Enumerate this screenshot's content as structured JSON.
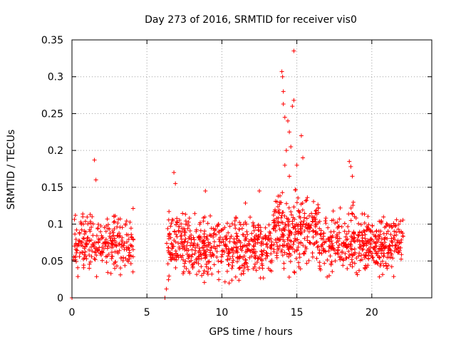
{
  "chart_data": {
    "type": "scatter",
    "title": "Day 273 of 2016, SRMTID for receiver vis0",
    "xlabel": "GPS time / hours",
    "ylabel": "SRMTID / TECUs",
    "xlim": [
      0,
      24
    ],
    "ylim": [
      0,
      0.35
    ],
    "xticks": [
      0,
      5,
      10,
      15,
      20
    ],
    "xtick_labels": [
      "0",
      "5",
      "10",
      "15",
      "20"
    ],
    "yticks": [
      0,
      0.05,
      0.1,
      0.15,
      0.2,
      0.25,
      0.3,
      0.35
    ],
    "ytick_labels": [
      "0",
      "0.05",
      "0.1",
      "0.15",
      "0.2",
      "0.25",
      "0.3",
      "0.35"
    ],
    "grid": true,
    "marker": "+",
    "color": "#ff0000",
    "series": [
      {
        "name": "SRMTID",
        "segments": [
          {
            "start": 0.1,
            "end": 4.1,
            "base": 0.075,
            "spread": 0.035,
            "count": 260
          },
          {
            "start": 6.3,
            "end": 13.4,
            "base": 0.07,
            "spread": 0.035,
            "count": 520
          },
          {
            "start": 13.4,
            "end": 16.5,
            "base": 0.09,
            "spread": 0.045,
            "count": 260
          },
          {
            "start": 16.5,
            "end": 22.1,
            "base": 0.075,
            "spread": 0.035,
            "count": 420
          }
        ],
        "highlights": [
          {
            "x": 1.5,
            "y": 0.187
          },
          {
            "x": 1.6,
            "y": 0.16
          },
          {
            "x": 6.8,
            "y": 0.17
          },
          {
            "x": 6.9,
            "y": 0.155
          },
          {
            "x": 8.9,
            "y": 0.145
          },
          {
            "x": 12.5,
            "y": 0.145
          },
          {
            "x": 14.0,
            "y": 0.307
          },
          {
            "x": 14.05,
            "y": 0.3
          },
          {
            "x": 14.1,
            "y": 0.28
          },
          {
            "x": 14.1,
            "y": 0.263
          },
          {
            "x": 14.2,
            "y": 0.245
          },
          {
            "x": 14.4,
            "y": 0.24
          },
          {
            "x": 14.5,
            "y": 0.225
          },
          {
            "x": 14.6,
            "y": 0.205
          },
          {
            "x": 14.7,
            "y": 0.26
          },
          {
            "x": 14.8,
            "y": 0.268
          },
          {
            "x": 14.8,
            "y": 0.335
          },
          {
            "x": 14.3,
            "y": 0.2
          },
          {
            "x": 14.2,
            "y": 0.18
          },
          {
            "x": 14.5,
            "y": 0.165
          },
          {
            "x": 15.3,
            "y": 0.22
          },
          {
            "x": 15.4,
            "y": 0.19
          },
          {
            "x": 15.0,
            "y": 0.18
          },
          {
            "x": 18.5,
            "y": 0.185
          },
          {
            "x": 18.6,
            "y": 0.178
          },
          {
            "x": 18.7,
            "y": 0.165
          },
          {
            "x": 0.0,
            "y": 0.0
          },
          {
            "x": 6.2,
            "y": 0.0
          },
          {
            "x": 6.3,
            "y": 0.012
          }
        ]
      }
    ]
  }
}
